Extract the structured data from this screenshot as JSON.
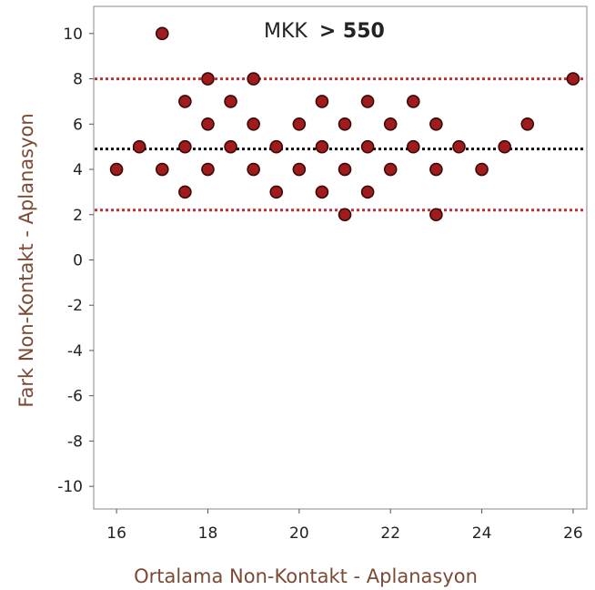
{
  "chart_data": {
    "type": "scatter",
    "title": "",
    "xlabel": "Ortalama Non-Kontakt - Aplanasyon",
    "ylabel": "Fark Non-Kontakt - Aplanasyon",
    "xlim": [
      15.5,
      26.3
    ],
    "ylim": [
      -11,
      11.2
    ],
    "xticks": [
      16,
      18,
      20,
      22,
      24,
      26
    ],
    "yticks": [
      10,
      8,
      6,
      4,
      2,
      0,
      -2,
      -4,
      -6,
      -8,
      -10
    ],
    "grid": false,
    "legend": "none",
    "annotation": {
      "prefix": "MKK",
      "suffix": "> 550"
    },
    "reference_lines": [
      {
        "y": 8.0,
        "color": "#c03030",
        "style": "dotted"
      },
      {
        "y": 4.9,
        "color": "#111111",
        "style": "dotted"
      },
      {
        "y": 2.2,
        "color": "#c03030",
        "style": "dotted"
      }
    ],
    "points": [
      {
        "x": 16,
        "y": 4
      },
      {
        "x": 16.5,
        "y": 5
      },
      {
        "x": 17,
        "y": 10
      },
      {
        "x": 17,
        "y": 4
      },
      {
        "x": 17.5,
        "y": 7
      },
      {
        "x": 17.5,
        "y": 5
      },
      {
        "x": 17.5,
        "y": 3
      },
      {
        "x": 18,
        "y": 8
      },
      {
        "x": 18,
        "y": 6
      },
      {
        "x": 18,
        "y": 4
      },
      {
        "x": 18.5,
        "y": 7
      },
      {
        "x": 18.5,
        "y": 5
      },
      {
        "x": 19,
        "y": 8
      },
      {
        "x": 19,
        "y": 6
      },
      {
        "x": 19,
        "y": 4
      },
      {
        "x": 19.5,
        "y": 5
      },
      {
        "x": 19.5,
        "y": 3
      },
      {
        "x": 20,
        "y": 6
      },
      {
        "x": 20,
        "y": 4
      },
      {
        "x": 20.5,
        "y": 7
      },
      {
        "x": 20.5,
        "y": 5
      },
      {
        "x": 20.5,
        "y": 3
      },
      {
        "x": 21,
        "y": 6
      },
      {
        "x": 21,
        "y": 4
      },
      {
        "x": 21,
        "y": 2
      },
      {
        "x": 21.5,
        "y": 7
      },
      {
        "x": 21.5,
        "y": 5
      },
      {
        "x": 21.5,
        "y": 3
      },
      {
        "x": 22,
        "y": 6
      },
      {
        "x": 22,
        "y": 4
      },
      {
        "x": 22.5,
        "y": 7
      },
      {
        "x": 22.5,
        "y": 5
      },
      {
        "x": 23,
        "y": 6
      },
      {
        "x": 23,
        "y": 4
      },
      {
        "x": 23,
        "y": 2
      },
      {
        "x": 23.5,
        "y": 5
      },
      {
        "x": 24,
        "y": 4
      },
      {
        "x": 24.5,
        "y": 5
      },
      {
        "x": 25,
        "y": 6
      },
      {
        "x": 26,
        "y": 8
      }
    ],
    "colors": {
      "point_fill": "#a01c1c",
      "point_stroke": "#3a0808",
      "limit_line": "#c03030",
      "mean_line": "#111111",
      "axis_title": "#7a4a35"
    }
  }
}
